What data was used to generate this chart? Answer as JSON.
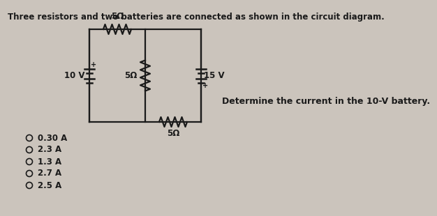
{
  "title": "Three resistors and two batteries are connected as shown in the circuit diagram.",
  "title_fontsize": 8.5,
  "background_color": "#cbc4bc",
  "question_text": "Determine the current in the 10-V battery.",
  "choices": [
    "0.30 A",
    "2.3 A",
    "1.3 A",
    "2.7 A",
    "2.5 A"
  ],
  "circuit": {
    "left_battery_label": "10 V",
    "top_resistor_label": "5Ω",
    "mid_resistor_label": "5Ω",
    "bot_resistor_label": "5Ω",
    "right_battery_label": "15 V"
  },
  "text_color": "#1a1a1a"
}
